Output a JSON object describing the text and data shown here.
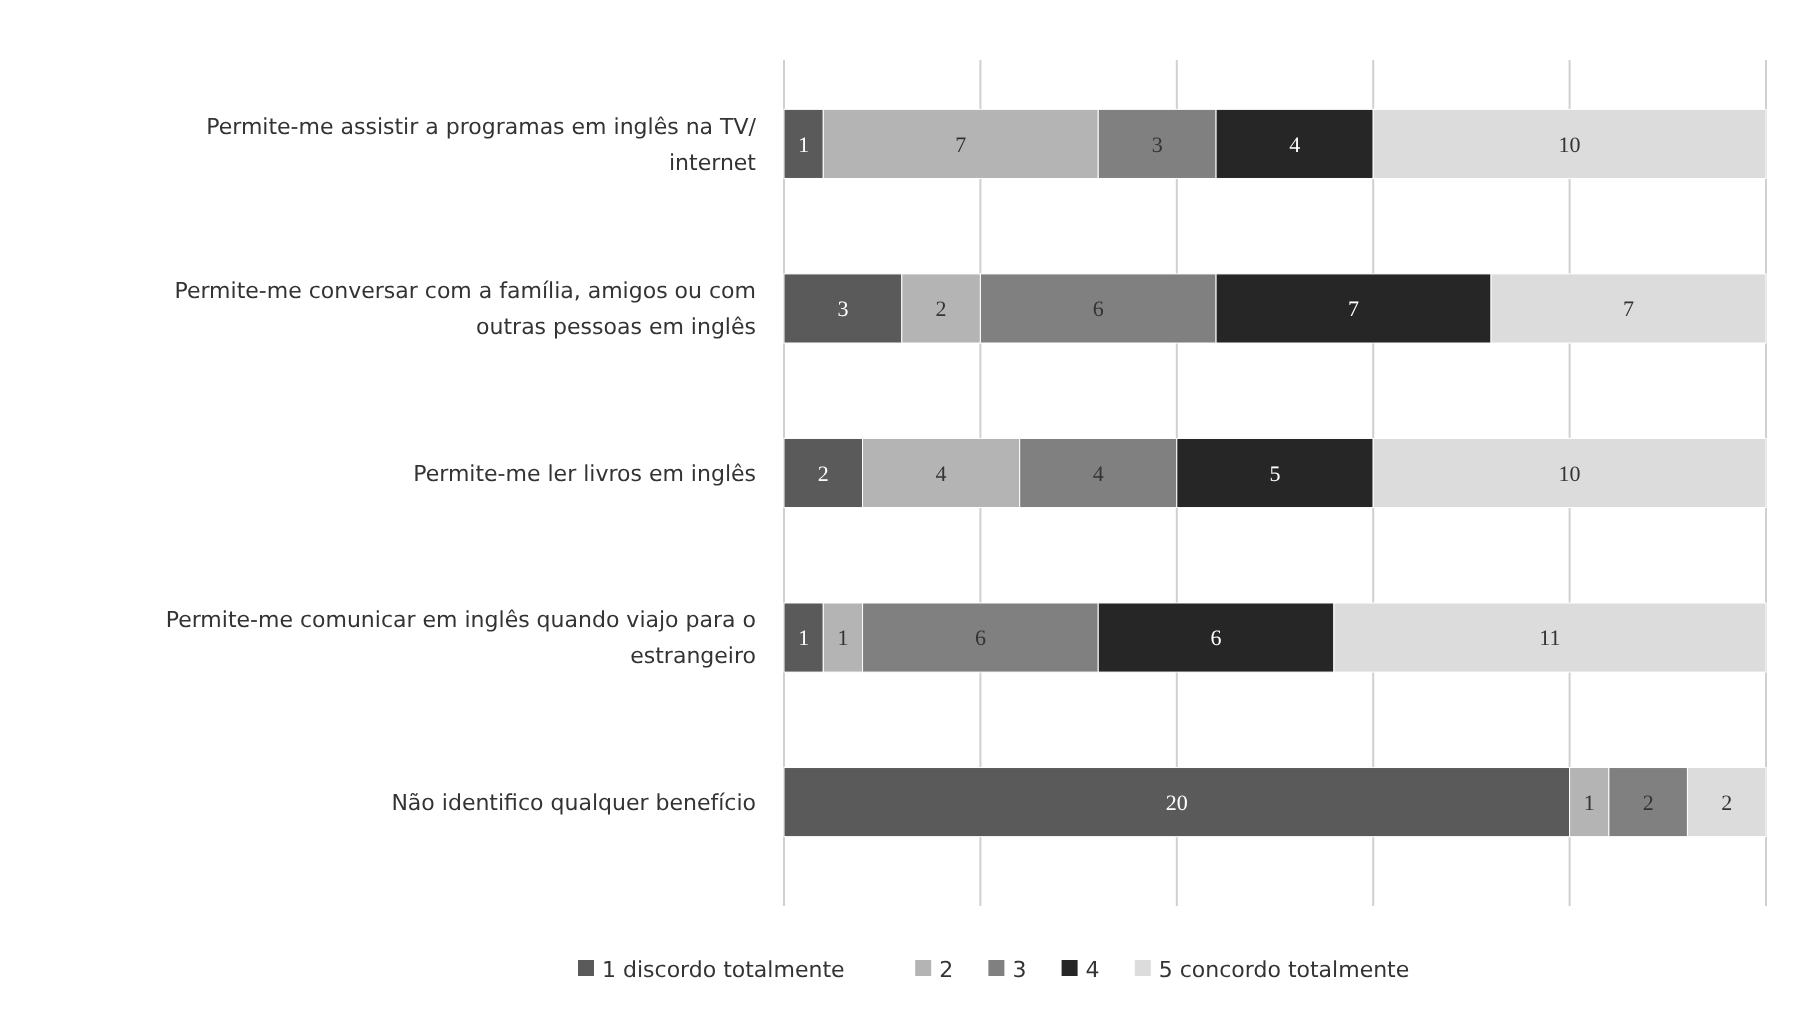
{
  "chart_data": {
    "type": "bar",
    "orientation": "horizontal",
    "stacked": true,
    "categories": [
      "Permite-me assistir a programas em inglês na TV/ internet",
      "Permite-me conversar com a família, amigos ou com outras pessoas em inglês",
      "Permite-me ler livros em inglês",
      "Permite-me comunicar em inglês quando viajo para o estrangeiro",
      "Não identifico qualquer benefício"
    ],
    "series": [
      {
        "name": "1 discordo totalmente",
        "color": "#5a5a5a",
        "values": [
          1,
          3,
          2,
          1,
          20
        ]
      },
      {
        "name": "2",
        "color": "#b4b4b4",
        "values": [
          7,
          2,
          4,
          1,
          1
        ]
      },
      {
        "name": "3",
        "color": "#808080",
        "values": [
          3,
          6,
          4,
          6,
          2
        ]
      },
      {
        "name": "4",
        "color": "#262626",
        "values": [
          4,
          7,
          5,
          6,
          null
        ]
      },
      {
        "name": "5 concordo totalmente",
        "color": "#dcdcdc",
        "values": [
          10,
          7,
          10,
          11,
          2
        ]
      }
    ],
    "xlim": [
      0,
      25
    ],
    "xticks": [
      {
        "value": 0,
        "label": null
      },
      {
        "value": 5,
        "label": null
      },
      {
        "value": 10,
        "label": null
      },
      {
        "value": 15,
        "label": null
      },
      {
        "value": 20,
        "label": null
      },
      {
        "value": 25,
        "label": null
      }
    ],
    "grid": "x",
    "tick_labels": "y",
    "data_labels": true,
    "legend": "bottom"
  }
}
